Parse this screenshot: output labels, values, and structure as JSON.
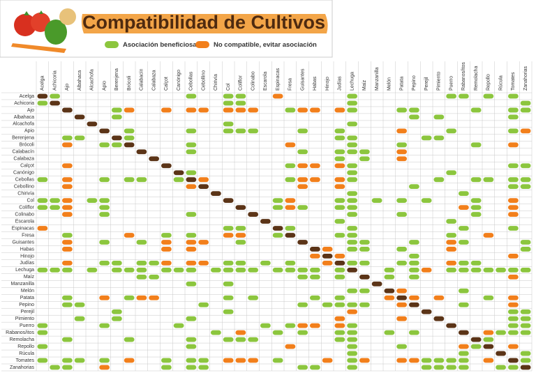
{
  "header": {
    "title": "Compatibilidad de Cultivos",
    "legend": {
      "beneficial": "Asociación beneficiosa",
      "incompatible": "No compatible, evitar asociación"
    }
  },
  "matrix": {
    "colors": {
      "beneficial": "#8cc63e",
      "incompatible": "#f27f1b",
      "self": "#5b3417"
    },
    "crops": [
      "Acelga",
      "Achicoria",
      "Ajo",
      "Albahaca",
      "Alcachofa",
      "Apio",
      "Berenjena",
      "Brócoli",
      "Calabacín",
      "Calabaza",
      "Calçot",
      "Canónigo",
      "Cebollas",
      "Cebollino",
      "Chirivía",
      "Col",
      "Coliflor",
      "Colinabo",
      "Escarola",
      "Espinacas",
      "Fresa",
      "Guisantes",
      "Habas",
      "Hinojo",
      "Judías",
      "Lechuga",
      "Maíz",
      "Manzanilla",
      "Melón",
      "Patata",
      "Pepino",
      "Perejil",
      "Pimiento",
      "Puerro",
      "Rabanos/itos",
      "Remolacha",
      "Repollo",
      "Rúcula",
      "Tomates",
      "Zanahorias"
    ],
    "rows": [
      {
        "good": [
          1,
          12,
          15,
          16,
          25,
          33,
          34,
          36,
          38
        ],
        "bad": [
          19
        ]
      },
      {
        "good": [
          0,
          15,
          16,
          25,
          39
        ],
        "bad": []
      },
      {
        "good": [
          6,
          20,
          25,
          29,
          30,
          35,
          38,
          39
        ],
        "bad": [
          7,
          10,
          12,
          13,
          15,
          16,
          17,
          21,
          22,
          24
        ]
      },
      {
        "good": [
          6,
          30,
          32,
          38
        ],
        "bad": []
      },
      {
        "good": [
          15,
          25
        ],
        "bad": []
      },
      {
        "good": [
          7,
          12,
          15,
          16,
          17,
          21,
          24,
          33,
          38
        ],
        "bad": [
          29,
          39
        ]
      },
      {
        "good": [
          2,
          3,
          7,
          24,
          25,
          31,
          32
        ],
        "bad": []
      },
      {
        "good": [
          5,
          6,
          12,
          25,
          29,
          35
        ],
        "bad": [
          2,
          20,
          38
        ]
      },
      {
        "good": [
          12,
          21,
          24,
          25,
          26
        ],
        "bad": [
          29
        ]
      },
      {
        "good": [
          24,
          26
        ],
        "bad": [
          29
        ]
      },
      {
        "good": [
          20,
          25,
          38,
          39
        ],
        "bad": [
          2,
          21,
          22,
          24
        ]
      },
      {
        "good": [
          12,
          25,
          33
        ],
        "bad": []
      },
      {
        "good": [
          0,
          5,
          7,
          8,
          11,
          20,
          25,
          32,
          35,
          36,
          38,
          39
        ],
        "bad": [
          2,
          13,
          21,
          22,
          24
        ]
      },
      {
        "good": [
          30,
          38,
          39
        ],
        "bad": [
          2,
          12,
          21,
          24
        ]
      },
      {
        "good": [
          25,
          34
        ],
        "bad": []
      },
      {
        "good": [
          0,
          1,
          4,
          5,
          19,
          24,
          25,
          27,
          29,
          31,
          35
        ],
        "bad": [
          2,
          20,
          38
        ]
      },
      {
        "good": [
          0,
          1,
          5,
          19,
          21,
          24,
          25,
          35
        ],
        "bad": [
          2,
          20,
          34,
          38
        ]
      },
      {
        "good": [
          5,
          12,
          25,
          29,
          35
        ],
        "bad": [
          2,
          38
        ]
      },
      {
        "good": [
          24,
          33
        ],
        "bad": []
      },
      {
        "good": [
          15,
          16,
          20,
          25,
          34,
          38
        ],
        "bad": [
          0
        ]
      },
      {
        "good": [
          2,
          10,
          12,
          19,
          24,
          25,
          33
        ],
        "bad": [
          7,
          15,
          16,
          36
        ]
      },
      {
        "good": [
          5,
          8,
          16,
          25,
          26,
          30,
          34,
          39
        ],
        "bad": [
          2,
          10,
          12,
          13,
          33
        ]
      },
      {
        "good": [
          25,
          26,
          29,
          39
        ],
        "bad": [
          2,
          10,
          12,
          23,
          33
        ]
      },
      {
        "good": [
          30
        ],
        "bad": [
          22,
          24,
          38
        ]
      },
      {
        "good": [
          5,
          6,
          8,
          9,
          15,
          16,
          18,
          20,
          25,
          26,
          29,
          30,
          34,
          35
        ],
        "bad": [
          2,
          10,
          12,
          13,
          23,
          33
        ]
      },
      {
        "good": [
          0,
          1,
          2,
          4,
          6,
          7,
          8,
          10,
          11,
          12,
          14,
          15,
          16,
          17,
          19,
          20,
          21,
          22,
          24,
          28,
          30,
          33,
          34,
          35,
          36,
          37,
          38,
          39
        ],
        "bad": [
          31
        ]
      },
      {
        "good": [
          8,
          9,
          21,
          22,
          24,
          28,
          30
        ],
        "bad": [
          38
        ]
      },
      {
        "good": [
          12,
          15
        ],
        "bad": []
      },
      {
        "good": [
          25,
          26,
          34
        ],
        "bad": [
          29
        ]
      },
      {
        "good": [
          2,
          7,
          15,
          17,
          22,
          24,
          36
        ],
        "bad": [
          5,
          8,
          9,
          28,
          30,
          32,
          38
        ]
      },
      {
        "good": [
          2,
          3,
          13,
          21,
          23,
          24,
          25,
          26,
          34
        ],
        "bad": [
          29,
          38
        ]
      },
      {
        "good": [
          6,
          15,
          38,
          39
        ],
        "bad": [
          25
        ]
      },
      {
        "good": [
          3,
          6,
          12,
          38,
          39
        ],
        "bad": [
          24,
          29
        ]
      },
      {
        "good": [
          0,
          5,
          11,
          18,
          20,
          25,
          38,
          39
        ],
        "bad": [
          21,
          22,
          24
        ]
      },
      {
        "good": [
          0,
          14,
          19,
          21,
          24,
          25,
          28,
          30,
          37,
          38,
          39
        ],
        "bad": [
          16,
          36
        ]
      },
      {
        "good": [
          2,
          7,
          12,
          15,
          16,
          17,
          24,
          25,
          36
        ],
        "bad": []
      },
      {
        "good": [
          0,
          12,
          25,
          29,
          35
        ],
        "bad": [
          20,
          34,
          38
        ]
      },
      {
        "good": [
          25,
          34,
          39
        ],
        "bad": []
      },
      {
        "good": [
          0,
          2,
          3,
          5,
          10,
          12,
          13,
          19,
          25,
          31,
          32,
          33,
          34,
          39
        ],
        "bad": [
          7,
          15,
          16,
          17,
          23,
          26,
          29,
          30,
          36
        ]
      },
      {
        "good": [
          1,
          2,
          10,
          12,
          13,
          21,
          22,
          25,
          31,
          32,
          33,
          34,
          37,
          38
        ],
        "bad": [
          5
        ]
      }
    ]
  }
}
